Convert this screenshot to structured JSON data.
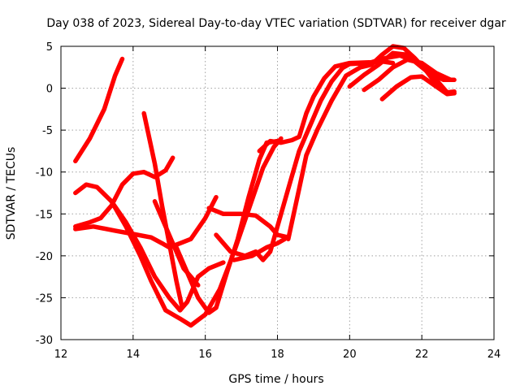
{
  "chart_data": {
    "type": "scatter",
    "title": "Day 038 of 2023, Sidereal Day-to-day VTEC variation (SDTVAR) for receiver dgar",
    "xlabel": "GPS time / hours",
    "ylabel": "SDTVAR / TECUs",
    "xlim": [
      12,
      24
    ],
    "ylim": [
      -30,
      5
    ],
    "xticks": [
      12,
      14,
      16,
      18,
      20,
      22,
      24
    ],
    "yticks": [
      5,
      0,
      -5,
      -10,
      -15,
      -20,
      -25,
      -30
    ],
    "xtick_labels": [
      "12",
      "14",
      "16",
      "18",
      "20",
      "22",
      "24"
    ],
    "ytick_labels": [
      "5",
      "0",
      "-5",
      "-10",
      "-15",
      "-20",
      "-25",
      "-30"
    ],
    "grid": true,
    "marker": "+",
    "color": "#ff0000",
    "series": [
      {
        "points": [
          [
            12.4,
            -8.7
          ],
          [
            12.8,
            -6.0
          ],
          [
            13.2,
            -2.5
          ],
          [
            13.5,
            1.5
          ],
          [
            13.7,
            3.5
          ]
        ]
      },
      {
        "points": [
          [
            12.4,
            -12.5
          ],
          [
            12.7,
            -11.5
          ],
          [
            13.0,
            -11.8
          ],
          [
            13.4,
            -13.5
          ],
          [
            13.8,
            -16.0
          ],
          [
            14.2,
            -19.0
          ],
          [
            14.6,
            -22.5
          ],
          [
            15.0,
            -25.0
          ],
          [
            15.3,
            -26.5
          ],
          [
            15.5,
            -25.5
          ],
          [
            15.8,
            -22.5
          ],
          [
            16.1,
            -21.5
          ],
          [
            16.5,
            -20.8
          ]
        ]
      },
      {
        "points": [
          [
            12.4,
            -16.5
          ],
          [
            12.8,
            -16.0
          ],
          [
            13.1,
            -15.5
          ],
          [
            13.4,
            -14.0
          ],
          [
            13.7,
            -11.5
          ],
          [
            14.0,
            -10.2
          ],
          [
            14.3,
            -10.0
          ],
          [
            14.6,
            -10.6
          ],
          [
            14.9,
            -9.8
          ],
          [
            15.1,
            -8.3
          ]
        ]
      },
      {
        "points": [
          [
            12.4,
            -16.8
          ],
          [
            12.9,
            -16.5
          ],
          [
            13.5,
            -17.0
          ],
          [
            14.0,
            -17.4
          ],
          [
            14.5,
            -17.8
          ],
          [
            14.8,
            -18.5
          ],
          [
            15.0,
            -19.0
          ],
          [
            15.3,
            -18.5
          ],
          [
            15.6,
            -18.0
          ],
          [
            16.0,
            -15.5
          ],
          [
            16.3,
            -13.0
          ]
        ]
      },
      {
        "points": [
          [
            13.4,
            -13.5
          ],
          [
            13.8,
            -16.5
          ],
          [
            14.2,
            -20.0
          ],
          [
            14.5,
            -23.0
          ],
          [
            14.9,
            -26.5
          ],
          [
            15.3,
            -27.5
          ],
          [
            15.6,
            -28.3
          ],
          [
            16.0,
            -27.0
          ],
          [
            16.4,
            -24.0
          ],
          [
            16.8,
            -19.5
          ],
          [
            17.2,
            -14.5
          ],
          [
            17.6,
            -9.5
          ],
          [
            17.9,
            -7.0
          ],
          [
            18.1,
            -6.0
          ]
        ]
      },
      {
        "points": [
          [
            14.3,
            -3.0
          ],
          [
            14.6,
            -9.0
          ],
          [
            14.8,
            -14.0
          ],
          [
            15.0,
            -18.5
          ],
          [
            15.2,
            -23.0
          ],
          [
            15.35,
            -26.0
          ]
        ]
      },
      {
        "points": [
          [
            14.6,
            -13.5
          ],
          [
            14.9,
            -16.5
          ],
          [
            15.2,
            -19.5
          ],
          [
            15.4,
            -21.5
          ],
          [
            15.6,
            -22.5
          ],
          [
            15.8,
            -23.5
          ]
        ]
      },
      {
        "points": [
          [
            15.2,
            -19.0
          ],
          [
            15.5,
            -22.0
          ],
          [
            15.8,
            -25.0
          ],
          [
            16.1,
            -26.8
          ],
          [
            16.3,
            -26.2
          ],
          [
            16.6,
            -22.0
          ],
          [
            16.9,
            -18.0
          ],
          [
            17.2,
            -13.0
          ],
          [
            17.5,
            -8.5
          ],
          [
            17.7,
            -6.5
          ],
          [
            18.0,
            -6.3
          ]
        ]
      },
      {
        "points": [
          [
            16.1,
            -14.3
          ],
          [
            16.5,
            -15.0
          ],
          [
            17.0,
            -15.0
          ],
          [
            17.4,
            -15.2
          ],
          [
            17.8,
            -16.5
          ],
          [
            18.0,
            -17.5
          ],
          [
            18.3,
            -17.8
          ]
        ]
      },
      {
        "points": [
          [
            16.8,
            -20.5
          ],
          [
            17.3,
            -20.0
          ],
          [
            17.7,
            -19.0
          ],
          [
            18.0,
            -18.5
          ],
          [
            18.2,
            -18.0
          ]
        ]
      },
      {
        "points": [
          [
            16.3,
            -17.5
          ],
          [
            16.7,
            -19.5
          ],
          [
            17.1,
            -20.0
          ],
          [
            17.4,
            -19.5
          ],
          [
            17.6,
            -20.5
          ],
          [
            17.8,
            -19.5
          ],
          [
            18.0,
            -16.5
          ],
          [
            18.3,
            -12.0
          ],
          [
            18.6,
            -7.5
          ],
          [
            18.9,
            -4.5
          ],
          [
            19.2,
            -1.5
          ],
          [
            19.5,
            0.8
          ],
          [
            19.8,
            2.4
          ],
          [
            20.0,
            2.9
          ],
          [
            20.5,
            3.0
          ],
          [
            20.9,
            3.2
          ],
          [
            21.2,
            3.0
          ]
        ]
      },
      {
        "points": [
          [
            17.5,
            -7.5
          ],
          [
            17.8,
            -6.3
          ],
          [
            18.1,
            -6.5
          ],
          [
            18.4,
            -6.2
          ],
          [
            18.6,
            -5.8
          ],
          [
            18.8,
            -3.0
          ],
          [
            19.0,
            -1.0
          ],
          [
            19.3,
            1.2
          ],
          [
            19.6,
            2.6
          ],
          [
            20.0,
            3.0
          ],
          [
            20.6,
            3.1
          ],
          [
            21.0,
            3.6
          ],
          [
            21.4,
            3.9
          ],
          [
            21.8,
            3.2
          ],
          [
            22.2,
            1.8
          ],
          [
            22.6,
            1.0
          ],
          [
            22.9,
            1.0
          ]
        ]
      },
      {
        "points": [
          [
            18.3,
            -18.0
          ],
          [
            18.6,
            -12.0
          ],
          [
            18.8,
            -8.0
          ],
          [
            19.1,
            -5.0
          ],
          [
            19.5,
            -1.5
          ],
          [
            19.9,
            1.5
          ],
          [
            20.3,
            2.5
          ],
          [
            20.6,
            2.8
          ],
          [
            20.9,
            4.0
          ],
          [
            21.2,
            5.0
          ],
          [
            21.5,
            4.8
          ],
          [
            21.8,
            3.6
          ],
          [
            22.1,
            2.2
          ],
          [
            22.4,
            0.5
          ],
          [
            22.6,
            -0.4
          ],
          [
            22.9,
            -0.6
          ]
        ]
      },
      {
        "points": [
          [
            20.0,
            0.2
          ],
          [
            20.4,
            1.6
          ],
          [
            20.8,
            2.8
          ],
          [
            21.2,
            4.2
          ],
          [
            21.6,
            4.0
          ],
          [
            22.0,
            2.8
          ],
          [
            22.4,
            1.0
          ],
          [
            22.7,
            -0.5
          ],
          [
            22.9,
            -0.4
          ]
        ]
      },
      {
        "points": [
          [
            20.9,
            -1.3
          ],
          [
            21.3,
            0.2
          ],
          [
            21.7,
            1.3
          ],
          [
            22.0,
            1.4
          ],
          [
            22.4,
            0.2
          ],
          [
            22.7,
            -0.7
          ],
          [
            22.9,
            -0.6
          ]
        ]
      },
      {
        "points": [
          [
            20.4,
            -0.2
          ],
          [
            20.8,
            1.0
          ],
          [
            21.2,
            2.5
          ],
          [
            21.6,
            3.4
          ],
          [
            22.0,
            3.0
          ],
          [
            22.4,
            1.8
          ],
          [
            22.8,
            1.0
          ]
        ]
      }
    ]
  }
}
